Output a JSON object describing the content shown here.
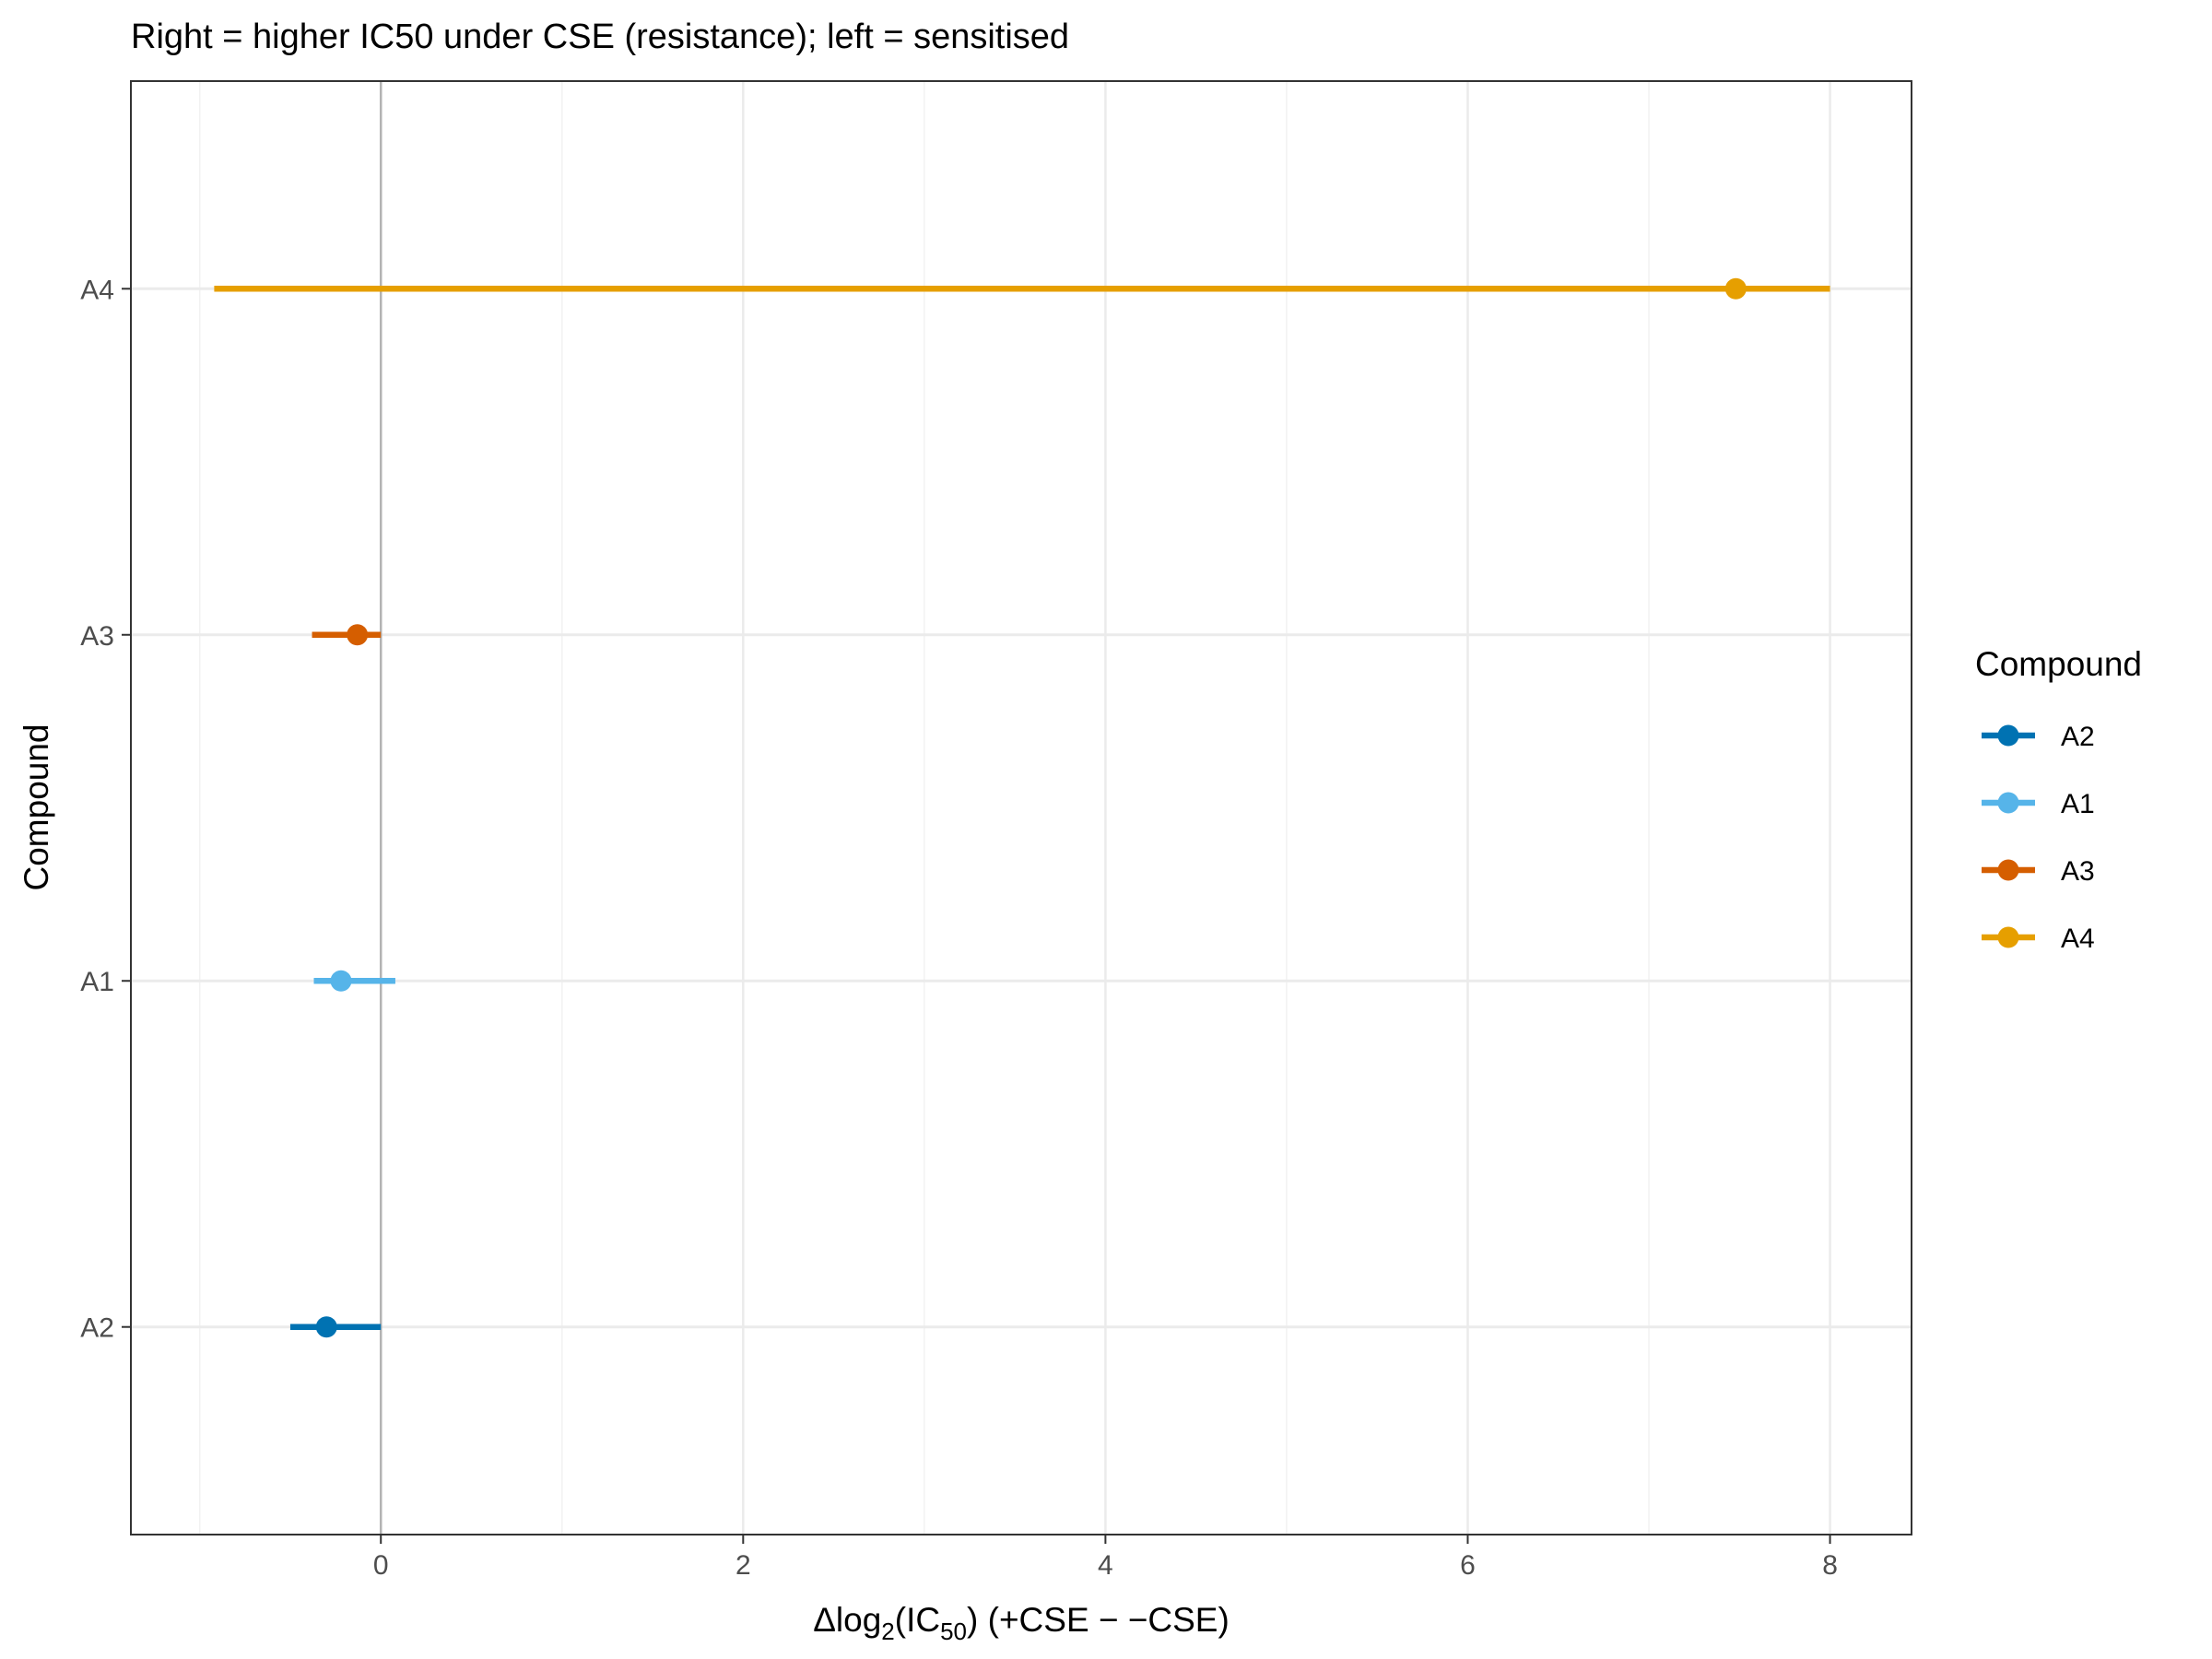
{
  "chart_data": {
    "type": "forest",
    "title": "Right = higher IC50 under CSE (resistance); left = sensitised",
    "xlabel": {
      "prefix": "Δlog",
      "sub1": "2",
      "mid": "(IC",
      "sub2": "50",
      "suffix": ") (+CSE − −CSE)"
    },
    "ylabel": "Compound",
    "xlim": [
      -1.38,
      8.45
    ],
    "x_ticks": [
      0,
      2,
      4,
      6,
      8
    ],
    "x_tick_labels": [
      "0",
      "2",
      "4",
      "6",
      "8"
    ],
    "categories": [
      "A2",
      "A1",
      "A3",
      "A4"
    ],
    "reference_line": 0,
    "grid": true,
    "legend": {
      "title": "Compound",
      "position": "right",
      "entries": [
        "A2",
        "A1",
        "A3",
        "A4"
      ]
    },
    "series": [
      {
        "name": "A2",
        "estimate": -0.3,
        "low": -0.5,
        "high": 0.0,
        "color": "#0072B2"
      },
      {
        "name": "A1",
        "estimate": -0.22,
        "low": -0.37,
        "high": 0.08,
        "color": "#56B4E9"
      },
      {
        "name": "A3",
        "estimate": -0.13,
        "low": -0.38,
        "high": 0.0,
        "color": "#D55E00"
      },
      {
        "name": "A4",
        "estimate": 7.48,
        "low": -0.92,
        "high": 8.0,
        "color": "#E69F00"
      }
    ]
  }
}
